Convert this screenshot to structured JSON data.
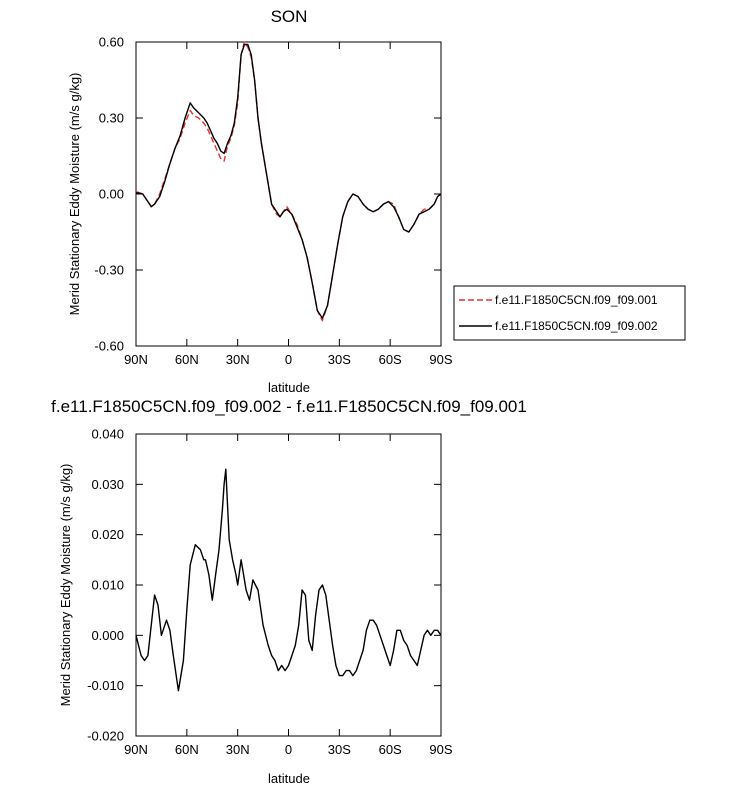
{
  "chart_data": [
    {
      "type": "line",
      "title": "SON",
      "xlabel": "latitude",
      "ylabel": "Merid Stationary Eddy Moisture (m/s g/kg)",
      "xlim": [
        90,
        -90
      ],
      "ylim": [
        -0.6,
        0.6
      ],
      "x_ticks": [
        90,
        60,
        30,
        0,
        -30,
        -60,
        -90
      ],
      "x_tick_labels": [
        "90N",
        "60N",
        "30N",
        "0",
        "30S",
        "60S",
        "90S"
      ],
      "y_ticks": [
        -0.6,
        -0.3,
        0.0,
        0.3,
        0.6
      ],
      "y_tick_labels": [
        "-0.60",
        "-0.30",
        "0.00",
        "0.30",
        "0.60"
      ],
      "legend_position": "right",
      "series": [
        {
          "name": "f.e11.F1850C5CN.f09_f09.001",
          "color": "#e8322b",
          "dash": "dashed",
          "x": [
            90,
            86,
            84,
            81,
            79,
            76,
            73,
            70,
            67,
            64,
            61,
            58,
            56,
            53,
            50,
            48,
            46,
            44,
            42,
            40,
            38,
            36,
            34,
            32,
            30,
            28,
            26,
            24,
            22,
            20,
            18,
            16,
            14,
            12,
            10,
            7,
            5,
            3,
            1,
            -2,
            -5,
            -8,
            -11,
            -14,
            -17,
            -20,
            -23,
            -26,
            -29,
            -32,
            -35,
            -38,
            -41,
            -44,
            -47,
            -50,
            -53,
            -56,
            -59,
            -62,
            -65,
            -68,
            -71,
            -74,
            -77,
            -80,
            -83,
            -86,
            -88,
            -90
          ],
          "y": [
            0.01,
            0.0,
            -0.02,
            -0.05,
            -0.04,
            0.0,
            0.06,
            0.12,
            0.18,
            0.22,
            0.28,
            0.33,
            0.31,
            0.3,
            0.28,
            0.26,
            0.23,
            0.2,
            0.17,
            0.14,
            0.13,
            0.19,
            0.22,
            0.27,
            0.36,
            0.55,
            0.6,
            0.58,
            0.54,
            0.45,
            0.3,
            0.2,
            0.12,
            0.04,
            -0.04,
            -0.08,
            -0.09,
            -0.07,
            -0.05,
            -0.08,
            -0.12,
            -0.18,
            -0.25,
            -0.35,
            -0.46,
            -0.5,
            -0.44,
            -0.32,
            -0.2,
            -0.09,
            -0.03,
            0.0,
            -0.01,
            -0.04,
            -0.06,
            -0.07,
            -0.06,
            -0.04,
            -0.03,
            -0.04,
            -0.09,
            -0.14,
            -0.15,
            -0.12,
            -0.08,
            -0.06,
            -0.06,
            -0.04,
            -0.01,
            0.0
          ]
        },
        {
          "name": "f.e11.F1850C5CN.f09_f09.002",
          "color": "#000000",
          "dash": "solid",
          "x": [
            90,
            86,
            84,
            81,
            79,
            76,
            73,
            70,
            67,
            64,
            61,
            58,
            56,
            53,
            50,
            48,
            46,
            44,
            42,
            40,
            38,
            36,
            34,
            32,
            30,
            28,
            26,
            24,
            22,
            20,
            18,
            16,
            14,
            12,
            10,
            7,
            5,
            3,
            1,
            -2,
            -5,
            -8,
            -11,
            -14,
            -17,
            -20,
            -23,
            -26,
            -29,
            -32,
            -35,
            -38,
            -41,
            -44,
            -47,
            -50,
            -53,
            -56,
            -59,
            -62,
            -65,
            -68,
            -71,
            -74,
            -77,
            -80,
            -83,
            -86,
            -88,
            -90
          ],
          "y": [
            0.005,
            0.0,
            -0.02,
            -0.05,
            -0.04,
            -0.01,
            0.05,
            0.12,
            0.18,
            0.23,
            0.3,
            0.36,
            0.34,
            0.32,
            0.3,
            0.28,
            0.25,
            0.22,
            0.2,
            0.17,
            0.16,
            0.2,
            0.23,
            0.28,
            0.38,
            0.55,
            0.59,
            0.59,
            0.55,
            0.45,
            0.3,
            0.2,
            0.12,
            0.04,
            -0.04,
            -0.07,
            -0.09,
            -0.07,
            -0.06,
            -0.08,
            -0.13,
            -0.18,
            -0.25,
            -0.35,
            -0.46,
            -0.49,
            -0.44,
            -0.32,
            -0.2,
            -0.09,
            -0.03,
            0.0,
            -0.01,
            -0.04,
            -0.06,
            -0.07,
            -0.06,
            -0.04,
            -0.03,
            -0.05,
            -0.09,
            -0.14,
            -0.15,
            -0.12,
            -0.08,
            -0.07,
            -0.06,
            -0.04,
            -0.01,
            0.0
          ]
        }
      ]
    },
    {
      "type": "line",
      "title": "f.e11.F1850C5CN.f09_f09.002 - f.e11.F1850C5CN.f09_f09.001",
      "xlabel": "latitude",
      "ylabel": "Merid Stationary Eddy Moisture (m/s g/kg)",
      "xlim": [
        90,
        -90
      ],
      "ylim": [
        -0.02,
        0.04
      ],
      "x_ticks": [
        90,
        60,
        30,
        0,
        -30,
        -60,
        -90
      ],
      "x_tick_labels": [
        "90N",
        "60N",
        "30N",
        "0",
        "30S",
        "60S",
        "90S"
      ],
      "y_ticks": [
        -0.02,
        -0.01,
        0.0,
        0.01,
        0.02,
        0.03,
        0.04
      ],
      "y_tick_labels": [
        "-0.020",
        "-0.010",
        "0.000",
        "0.010",
        "0.020",
        "0.030",
        "0.040"
      ],
      "series": [
        {
          "color": "#000000",
          "dash": "solid",
          "x": [
            90,
            87,
            85,
            83,
            80,
            79,
            77,
            75,
            72,
            70,
            68,
            65,
            62,
            60,
            58,
            55,
            52,
            50,
            49,
            47,
            45,
            43,
            41,
            39,
            38,
            37,
            35,
            33,
            31,
            30,
            28,
            25,
            23,
            21,
            18,
            15,
            12,
            10,
            8,
            6,
            4,
            2,
            0,
            -2,
            -4,
            -6,
            -8,
            -10,
            -12,
            -14,
            -16,
            -18,
            -20,
            -22,
            -24,
            -26,
            -28,
            -30,
            -32,
            -34,
            -36,
            -38,
            -40,
            -42,
            -44,
            -46,
            -48,
            -50,
            -52,
            -54,
            -56,
            -58,
            -60,
            -62,
            -64,
            -66,
            -68,
            -70,
            -72,
            -74,
            -76,
            -78,
            -80,
            -82,
            -84,
            -86,
            -88,
            -90
          ],
          "y": [
            0.0,
            -0.004,
            -0.005,
            -0.004,
            0.005,
            0.008,
            0.006,
            0.0,
            0.003,
            0.001,
            -0.004,
            -0.011,
            -0.005,
            0.005,
            0.014,
            0.018,
            0.017,
            0.015,
            0.015,
            0.012,
            0.007,
            0.012,
            0.017,
            0.025,
            0.03,
            0.033,
            0.019,
            0.015,
            0.012,
            0.01,
            0.015,
            0.009,
            0.007,
            0.011,
            0.009,
            0.002,
            -0.002,
            -0.004,
            -0.005,
            -0.007,
            -0.006,
            -0.007,
            -0.006,
            -0.004,
            -0.002,
            0.002,
            0.009,
            0.008,
            -0.001,
            -0.003,
            0.004,
            0.009,
            0.01,
            0.008,
            0.003,
            -0.002,
            -0.006,
            -0.008,
            -0.008,
            -0.007,
            -0.007,
            -0.008,
            -0.007,
            -0.005,
            -0.003,
            0.001,
            0.003,
            0.003,
            0.002,
            0.0,
            -0.002,
            -0.004,
            -0.006,
            -0.003,
            0.001,
            0.001,
            -0.001,
            -0.002,
            -0.004,
            -0.005,
            -0.006,
            -0.003,
            0.0,
            0.001,
            0.0,
            0.001,
            0.001,
            0.0
          ]
        }
      ]
    }
  ]
}
